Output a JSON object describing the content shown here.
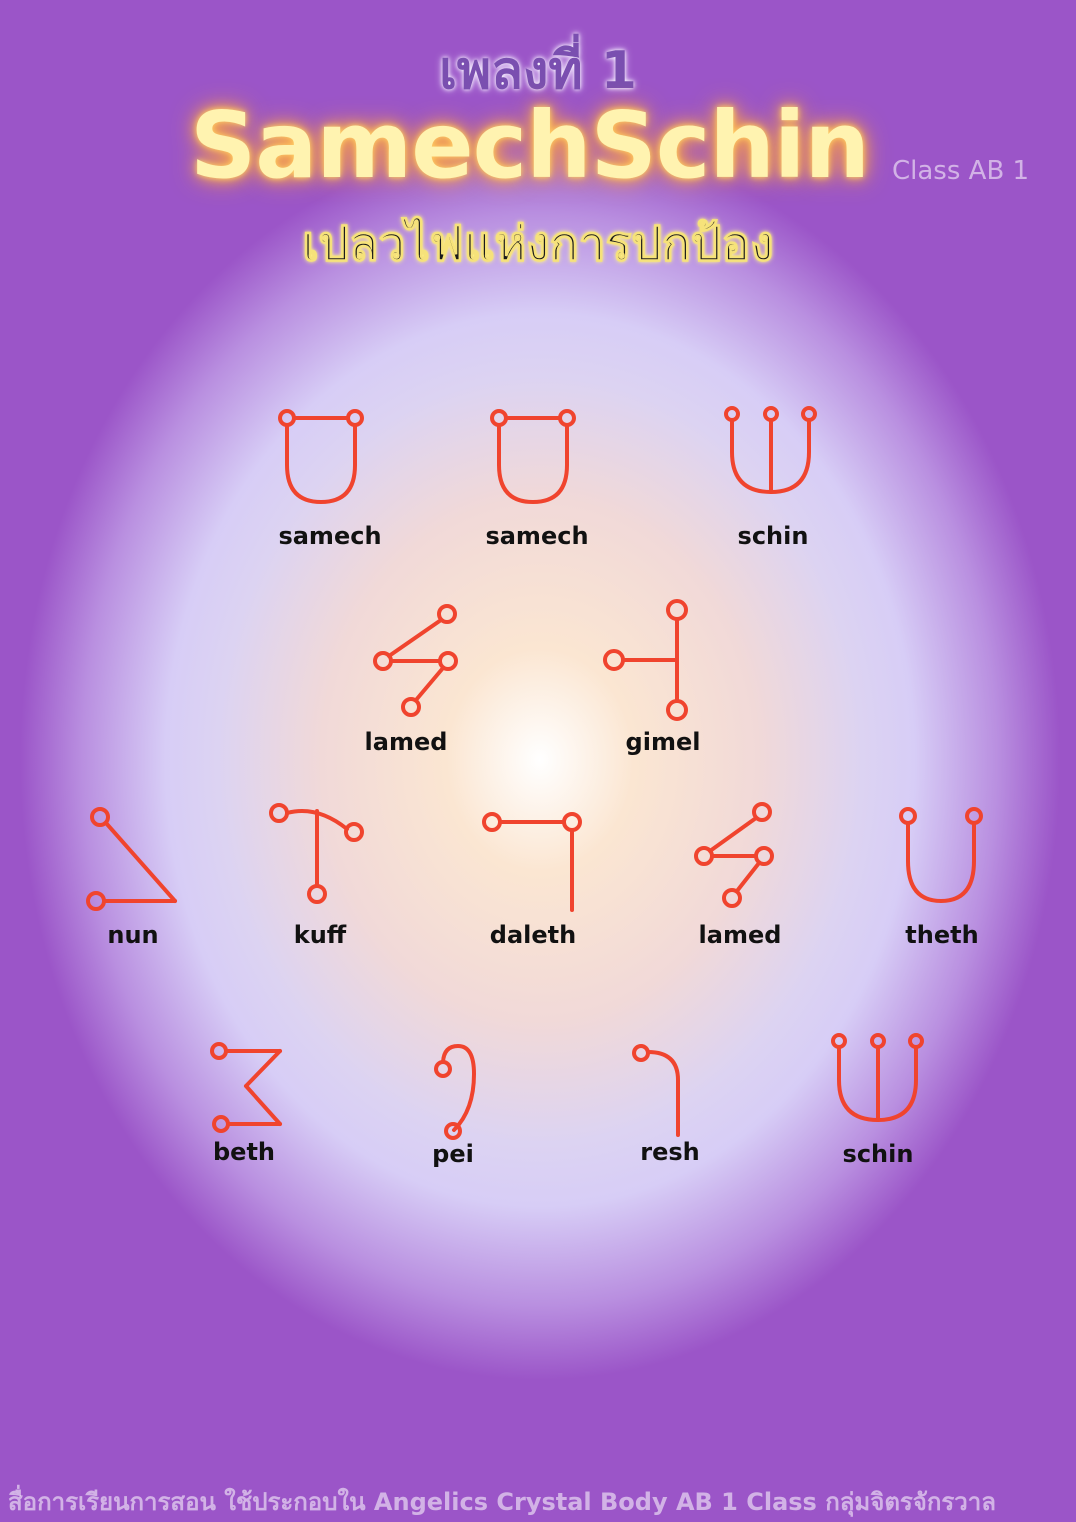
{
  "header": {
    "song_number": "เพลงที่ 1",
    "title": "SamechSchin",
    "class_tag": "Class AB 1",
    "subtitle": "เปลวไฟแห่งการปกป้อง"
  },
  "glyph_color": "#f0442e",
  "glyphs": [
    {
      "label": "samech",
      "icon": "samech-glyph-icon"
    },
    {
      "label": "samech",
      "icon": "samech-glyph-icon"
    },
    {
      "label": "schin",
      "icon": "schin-glyph-icon"
    },
    {
      "label": "lamed",
      "icon": "lamed-glyph-icon"
    },
    {
      "label": "gimel",
      "icon": "gimel-glyph-icon"
    },
    {
      "label": "nun",
      "icon": "nun-glyph-icon"
    },
    {
      "label": "kuff",
      "icon": "kuff-glyph-icon"
    },
    {
      "label": "daleth",
      "icon": "daleth-glyph-icon"
    },
    {
      "label": "lamed",
      "icon": "lamed-glyph-icon"
    },
    {
      "label": "theth",
      "icon": "theth-glyph-icon"
    },
    {
      "label": "beth",
      "icon": "beth-glyph-icon"
    },
    {
      "label": "pei",
      "icon": "pei-glyph-icon"
    },
    {
      "label": "resh",
      "icon": "resh-glyph-icon"
    },
    {
      "label": "schin",
      "icon": "schin-glyph-icon"
    }
  ],
  "footer": {
    "text": "สื่อการเรียนการสอน ใช้ประกอบใน Angelics Crystal Body   AB 1 Class   กลุ่มจิตรจักรวาล"
  }
}
